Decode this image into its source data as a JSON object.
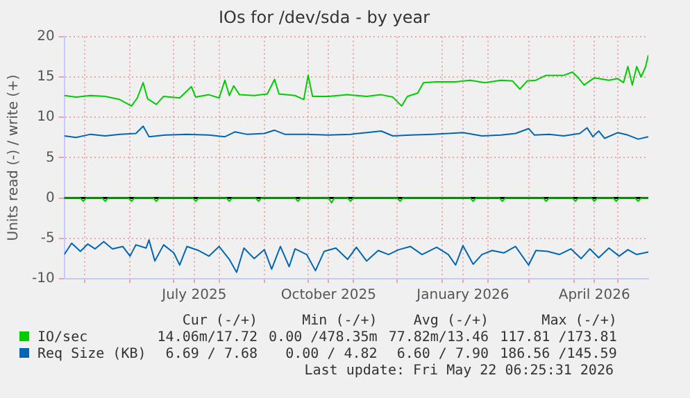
{
  "chart_data": {
    "type": "line",
    "title": "IOs for /dev/sda - by year",
    "ylabel": "Units read (-) / write (+)",
    "xlim": [
      "2025-04-17",
      "2026-05-22"
    ],
    "xticks": [
      {
        "value": "2025-05-01",
        "label": null
      },
      {
        "value": "2025-06-01",
        "label": null
      },
      {
        "value": "2025-07-01",
        "label": null
      },
      {
        "value": "2025-07-15",
        "label": "July 2025"
      },
      {
        "value": "2025-08-01",
        "label": null
      },
      {
        "value": "2025-09-01",
        "label": null
      },
      {
        "value": "2025-10-01",
        "label": null
      },
      {
        "value": "2025-10-15",
        "label": "October 2025"
      },
      {
        "value": "2025-11-01",
        "label": null
      },
      {
        "value": "2025-12-01",
        "label": null
      },
      {
        "value": "2026-01-01",
        "label": null
      },
      {
        "value": "2026-01-15",
        "label": "January 2026"
      },
      {
        "value": "2026-02-01",
        "label": null
      },
      {
        "value": "2026-03-01",
        "label": null
      },
      {
        "value": "2026-04-01",
        "label": null
      },
      {
        "value": "2026-04-15",
        "label": "April 2026"
      },
      {
        "value": "2026-05-01",
        "label": null
      }
    ],
    "ylim": [
      -10,
      20
    ],
    "yticks": [
      -10,
      -5,
      0,
      5,
      10,
      15,
      20
    ],
    "grid": true,
    "legend": "bottom",
    "marker": "none",
    "line_style": "solid",
    "ref_lines": [
      {
        "axis": "y",
        "value": 0,
        "color": "#000000"
      }
    ],
    "series": [
      {
        "name": "IO/sec",
        "color": "#00cc00",
        "x": [
          "2025-04-17",
          "2025-04-25",
          "2025-05-05",
          "2025-05-15",
          "2025-05-25",
          "2025-06-02",
          "2025-06-06",
          "2025-06-10",
          "2025-06-13",
          "2025-06-19",
          "2025-06-24",
          "2025-07-05",
          "2025-07-13",
          "2025-07-16",
          "2025-07-25",
          "2025-08-01",
          "2025-08-05",
          "2025-08-08",
          "2025-08-11",
          "2025-08-15",
          "2025-08-25",
          "2025-09-03",
          "2025-09-08",
          "2025-09-11",
          "2025-09-22",
          "2025-09-28",
          "2025-10-01",
          "2025-10-04",
          "2025-10-15",
          "2025-10-28",
          "2025-11-10",
          "2025-11-20",
          "2025-11-28",
          "2025-12-04",
          "2025-12-08",
          "2025-12-15",
          "2025-12-19",
          "2025-12-28",
          "2026-01-10",
          "2026-01-20",
          "2026-01-30",
          "2026-02-10",
          "2026-02-18",
          "2026-02-23",
          "2026-02-28",
          "2026-03-06",
          "2026-03-13",
          "2026-03-25",
          "2026-03-31",
          "2026-04-04",
          "2026-04-08",
          "2026-04-15",
          "2026-04-25",
          "2026-05-01",
          "2026-05-05",
          "2026-05-08",
          "2026-05-11",
          "2026-05-14",
          "2026-05-17",
          "2026-05-20",
          "2026-05-22"
        ],
        "values": [
          12.7,
          12.5,
          12.7,
          12.6,
          12.2,
          11.4,
          12.4,
          14.3,
          12.3,
          11.6,
          12.6,
          12.4,
          13.8,
          12.5,
          12.8,
          12.4,
          14.6,
          12.7,
          13.9,
          12.8,
          12.7,
          12.9,
          14.7,
          12.9,
          12.7,
          12.2,
          15.2,
          12.6,
          12.6,
          12.8,
          12.6,
          12.8,
          12.5,
          11.4,
          12.6,
          13.0,
          14.3,
          14.4,
          14.4,
          14.6,
          14.3,
          14.6,
          14.5,
          13.5,
          14.5,
          14.6,
          15.2,
          15.2,
          15.6,
          14.9,
          14.0,
          14.9,
          14.6,
          14.8,
          14.3,
          16.3,
          14.0,
          16.3,
          15.0,
          16.2,
          17.7
        ]
      },
      {
        "color": "#00cc00",
        "x": [
          "2025-04-17",
          "2025-04-28",
          "2025-04-30",
          "2025-05-02",
          "2025-05-13",
          "2025-05-15",
          "2025-05-17",
          "2025-05-31",
          "2025-06-02",
          "2025-06-04",
          "2025-06-17",
          "2025-06-19",
          "2025-06-21",
          "2025-07-14",
          "2025-07-16",
          "2025-07-18",
          "2025-08-06",
          "2025-08-08",
          "2025-08-10",
          "2025-08-26",
          "2025-08-28",
          "2025-08-30",
          "2025-09-22",
          "2025-09-24",
          "2025-09-26",
          "2025-10-15",
          "2025-10-17",
          "2025-10-19",
          "2025-10-28",
          "2025-10-30",
          "2025-11-01",
          "2025-12-01",
          "2025-12-03",
          "2025-12-05",
          "2026-01-20",
          "2026-01-22",
          "2026-01-24",
          "2026-02-09",
          "2026-02-11",
          "2026-02-13",
          "2026-03-11",
          "2026-03-13",
          "2026-03-15",
          "2026-03-31",
          "2026-04-02",
          "2026-04-04",
          "2026-04-13",
          "2026-04-15",
          "2026-04-17",
          "2026-04-28",
          "2026-04-30",
          "2026-05-02",
          "2026-05-13",
          "2026-05-15",
          "2026-05-17",
          "2026-05-22"
        ],
        "values": [
          0,
          0,
          -0.4,
          0,
          0,
          -0.4,
          0,
          0,
          -0.4,
          0,
          0,
          -0.4,
          0,
          0,
          -0.4,
          0,
          0,
          -0.4,
          0,
          0,
          -0.4,
          0,
          0,
          -0.4,
          0,
          0,
          -0.6,
          0,
          0,
          -0.4,
          0,
          0,
          -0.4,
          0,
          0,
          -0.4,
          0,
          0,
          -0.4,
          0,
          0,
          -0.4,
          0,
          0,
          -0.4,
          0,
          0,
          -0.4,
          0,
          0,
          -0.4,
          0,
          0,
          -0.4,
          0,
          0
        ]
      },
      {
        "name": "Req Size (KB)",
        "color": "#0066b3",
        "x": [
          "2025-04-17",
          "2025-04-25",
          "2025-05-05",
          "2025-05-15",
          "2025-05-25",
          "2025-06-05",
          "2025-06-10",
          "2025-06-14",
          "2025-06-25",
          "2025-07-10",
          "2025-07-25",
          "2025-08-05",
          "2025-08-12",
          "2025-08-20",
          "2025-09-01",
          "2025-09-08",
          "2025-09-15",
          "2025-09-30",
          "2025-10-15",
          "2025-10-30",
          "2025-11-10",
          "2025-11-20",
          "2025-11-28",
          "2025-12-10",
          "2025-12-25",
          "2026-01-05",
          "2026-01-15",
          "2026-01-28",
          "2026-02-10",
          "2026-02-20",
          "2026-03-01",
          "2026-03-05",
          "2026-03-15",
          "2026-03-25",
          "2026-04-05",
          "2026-04-10",
          "2026-04-14",
          "2026-04-18",
          "2026-04-22",
          "2026-05-01",
          "2026-05-08",
          "2026-05-15",
          "2026-05-22"
        ],
        "values": [
          7.7,
          7.5,
          7.9,
          7.7,
          7.9,
          8.0,
          8.9,
          7.6,
          7.8,
          7.9,
          7.8,
          7.6,
          8.2,
          7.9,
          8.0,
          8.4,
          7.9,
          7.9,
          7.8,
          7.9,
          8.1,
          8.3,
          7.7,
          7.8,
          7.9,
          8.0,
          8.1,
          7.7,
          7.8,
          8.0,
          8.6,
          7.8,
          7.9,
          7.7,
          8.0,
          8.7,
          7.6,
          8.3,
          7.4,
          8.1,
          7.8,
          7.3,
          7.6
        ]
      },
      {
        "color": "#0066b3",
        "x": [
          "2025-04-17",
          "2025-04-22",
          "2025-04-28",
          "2025-05-03",
          "2025-05-08",
          "2025-05-14",
          "2025-05-20",
          "2025-05-27",
          "2025-06-01",
          "2025-06-05",
          "2025-06-12",
          "2025-06-14",
          "2025-06-18",
          "2025-06-24",
          "2025-07-01",
          "2025-07-05",
          "2025-07-10",
          "2025-07-18",
          "2025-07-25",
          "2025-08-01",
          "2025-08-08",
          "2025-08-13",
          "2025-08-18",
          "2025-08-25",
          "2025-09-01",
          "2025-09-06",
          "2025-09-12",
          "2025-09-18",
          "2025-09-22",
          "2025-09-30",
          "2025-10-06",
          "2025-10-12",
          "2025-10-20",
          "2025-10-28",
          "2025-11-03",
          "2025-11-10",
          "2025-11-18",
          "2025-11-25",
          "2025-12-02",
          "2025-12-10",
          "2025-12-18",
          "2025-12-28",
          "2026-01-05",
          "2026-01-10",
          "2026-01-15",
          "2026-01-22",
          "2026-01-28",
          "2026-02-04",
          "2026-02-12",
          "2026-02-20",
          "2026-03-01",
          "2026-03-06",
          "2026-03-14",
          "2026-03-22",
          "2026-03-30",
          "2026-04-06",
          "2026-04-12",
          "2026-04-18",
          "2026-04-25",
          "2026-05-02",
          "2026-05-08",
          "2026-05-14",
          "2026-05-22"
        ],
        "values": [
          -7.0,
          -5.6,
          -6.6,
          -5.7,
          -6.3,
          -5.4,
          -6.3,
          -6.0,
          -7.2,
          -5.8,
          -6.2,
          -5.2,
          -7.8,
          -5.8,
          -6.8,
          -8.3,
          -6.0,
          -6.5,
          -7.2,
          -6.0,
          -7.6,
          -9.2,
          -6.2,
          -7.5,
          -6.4,
          -8.8,
          -6.0,
          -8.5,
          -6.3,
          -7.0,
          -9.0,
          -6.6,
          -6.2,
          -7.6,
          -6.1,
          -7.8,
          -6.5,
          -7.0,
          -6.4,
          -6.0,
          -7.0,
          -6.1,
          -7.0,
          -8.3,
          -5.9,
          -8.2,
          -7.0,
          -6.5,
          -6.8,
          -6.0,
          -8.3,
          -6.5,
          -6.6,
          -7.0,
          -6.3,
          -7.5,
          -6.3,
          -7.4,
          -6.2,
          -7.2,
          -6.4,
          -7.0,
          -6.7
        ]
      }
    ],
    "annotations": [
      "Cur (-/+)",
      "Min (-/+)",
      "Avg (-/+)",
      "Max (-/+)",
      "14.06m/17.72",
      "0.00 /478.35m",
      "77.82m/13.46",
      "117.81 /173.81",
      "6.69 / 7.68",
      "0.00 / 4.82",
      "6.60 / 7.90",
      "186.56 /145.59",
      "Last update: Fri May 22 06:25:31 2026"
    ]
  }
}
